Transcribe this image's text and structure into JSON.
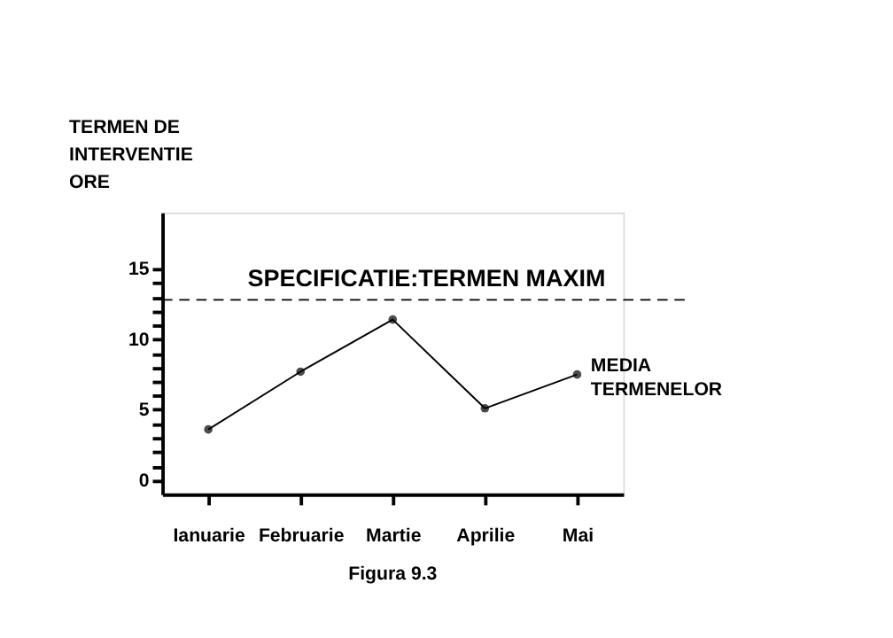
{
  "chart_data": {
    "type": "line",
    "ylabel": "TERMEN DE\nINTERVENTIE\nORE",
    "categories": [
      "Ianuarie",
      "Februarie",
      "Martie",
      "Aprilie",
      "Mai"
    ],
    "series": [
      {
        "name": "MEDIA TERMENELOR",
        "color": "#000000",
        "values": [
          3.6,
          7.7,
          11.4,
          5.1,
          7.5
        ]
      }
    ],
    "ylim": [
      -1,
      19
    ],
    "yticks": [
      0,
      {
        "value": 1,
        "label": null
      },
      {
        "value": 2,
        "label": null
      },
      {
        "value": 3,
        "label": null
      },
      {
        "value": 4,
        "label": null
      },
      5,
      {
        "value": 6,
        "label": null
      },
      {
        "value": 7,
        "label": null
      },
      {
        "value": 8,
        "label": null
      },
      {
        "value": 9,
        "label": null
      },
      10,
      {
        "value": 11,
        "label": null
      },
      {
        "value": 12,
        "label": null
      },
      {
        "value": 13,
        "label": null
      },
      {
        "value": 14,
        "label": null
      },
      15
    ],
    "ref_lines": [
      {
        "axis": "y",
        "value": 12.8,
        "label": "SPECIFICATIE:TERMEN MAXIM",
        "line_style": "dashed",
        "color": "#000000"
      }
    ],
    "annotations": [
      "Figura 9.3"
    ],
    "marker": "circle",
    "line_style": "solid",
    "grid": false,
    "legend": false
  }
}
